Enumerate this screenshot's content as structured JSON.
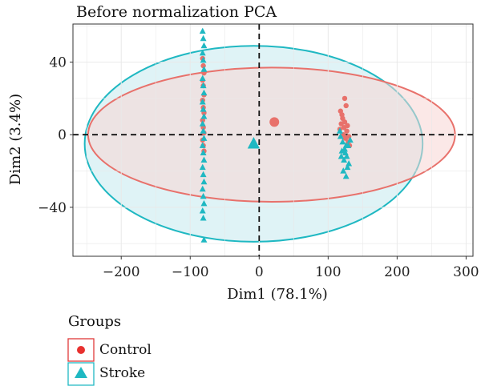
{
  "chart_data": {
    "type": "scatter",
    "title": "Before normalization PCA",
    "xlabel": "Dim1 (78.1%)",
    "ylabel": "Dim2 (3.4%)",
    "xlim": [
      -270,
      310
    ],
    "ylim": [
      -67,
      61
    ],
    "x_ticks": [
      -200,
      -100,
      0,
      100,
      200,
      300
    ],
    "x_tick_labels": [
      "−200",
      "−100",
      "0",
      "100",
      "200",
      "300"
    ],
    "y_ticks": [
      -40,
      0,
      40
    ],
    "y_tick_labels": [
      "−40",
      "0",
      "40"
    ],
    "reference_lines": {
      "x": 0,
      "y": 0
    },
    "legend": {
      "title": "Groups",
      "position": "bottom-left"
    },
    "series": [
      {
        "name": "Control",
        "marker": "circle",
        "color": "#E8716B",
        "fill": "#F7D6D3",
        "centroid": [
          22,
          7
        ],
        "ellipse": {
          "center": [
            18,
            0
          ],
          "rx": 266,
          "ry": 37
        },
        "points": [
          [
            -82,
            42
          ],
          [
            -81,
            38
          ],
          [
            -80,
            34
          ],
          [
            -82,
            30
          ],
          [
            -81,
            27
          ],
          [
            -80,
            22
          ],
          [
            -82,
            19
          ],
          [
            -81,
            15
          ],
          [
            -80,
            12
          ],
          [
            -82,
            8
          ],
          [
            -81,
            4
          ],
          [
            -80,
            1
          ],
          [
            -82,
            -3
          ],
          [
            -81,
            -6
          ],
          [
            -80,
            -9
          ],
          [
            118,
            13
          ],
          [
            121,
            9
          ],
          [
            124,
            20
          ],
          [
            126,
            16
          ],
          [
            119,
            6
          ],
          [
            123,
            4
          ],
          [
            127,
            2
          ],
          [
            122,
            0
          ],
          [
            125,
            -2
          ],
          [
            120,
            11
          ],
          [
            129,
            -4
          ],
          [
            131,
            -6
          ],
          [
            124,
            7
          ],
          [
            117,
            3
          ],
          [
            128,
            5
          ],
          [
            130,
            -1
          ]
        ]
      },
      {
        "name": "Stroke",
        "marker": "triangle",
        "color": "#1FB8C2",
        "fill": "#C5E9EE",
        "centroid": [
          -8,
          -5
        ],
        "ellipse": {
          "center": [
            -8,
            -5
          ],
          "rx": 245,
          "ry": 54
        },
        "points": [
          [
            -82,
            57
          ],
          [
            -81,
            53
          ],
          [
            -80,
            49
          ],
          [
            -82,
            45
          ],
          [
            -81,
            41
          ],
          [
            -80,
            36
          ],
          [
            -82,
            31
          ],
          [
            -81,
            27
          ],
          [
            -80,
            23
          ],
          [
            -82,
            18
          ],
          [
            -81,
            14
          ],
          [
            -80,
            10
          ],
          [
            -82,
            6
          ],
          [
            -81,
            2
          ],
          [
            -80,
            -2
          ],
          [
            -82,
            -6
          ],
          [
            -81,
            -10
          ],
          [
            -80,
            -14
          ],
          [
            -82,
            -18
          ],
          [
            -81,
            -22
          ],
          [
            -80,
            -26
          ],
          [
            -82,
            -30
          ],
          [
            -81,
            -34
          ],
          [
            -80,
            -38
          ],
          [
            -82,
            -42
          ],
          [
            -81,
            -46
          ],
          [
            -80,
            -58
          ],
          [
            117,
            2
          ],
          [
            121,
            -4
          ],
          [
            124,
            -8
          ],
          [
            127,
            -12
          ],
          [
            130,
            -16
          ],
          [
            122,
            -20
          ],
          [
            126,
            -23
          ],
          [
            118,
            -1
          ],
          [
            129,
            -6
          ],
          [
            125,
            -10
          ],
          [
            123,
            -14
          ],
          [
            128,
            -18
          ],
          [
            120,
            -9
          ],
          [
            132,
            -3
          ],
          [
            126,
            -6
          ],
          [
            119,
            -12
          ]
        ]
      }
    ]
  }
}
